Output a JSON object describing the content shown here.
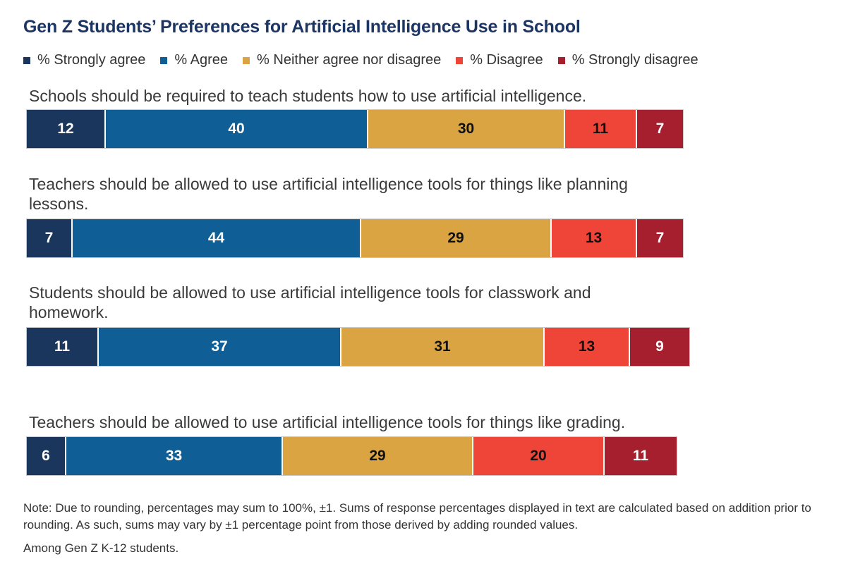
{
  "chart_data": {
    "type": "stacked-bar",
    "title": "Gen Z Students’ Preferences for Artificial Intelligence Use in School",
    "legend_position": "top-left",
    "series": [
      {
        "name": "% Strongly agree",
        "color": "#1b365d"
      },
      {
        "name": "% Agree",
        "color": "#0f5f96"
      },
      {
        "name": "% Neither agree nor disagree",
        "color": "#d9a441"
      },
      {
        "name": "% Disagree",
        "color": "#ef4438"
      },
      {
        "name": "% Strongly disagree",
        "color": "#a51f2e"
      }
    ],
    "items": [
      {
        "question": "Schools should be required to teach students how to use artificial intelligence.",
        "values": [
          12,
          40,
          30,
          11,
          7
        ]
      },
      {
        "question": "Teachers should be allowed to use artificial intelligence tools for things like planning lessons.",
        "values": [
          7,
          44,
          29,
          13,
          7
        ]
      },
      {
        "question": "Students should be allowed to use artificial intelligence tools for classwork and homework.",
        "values": [
          11,
          37,
          31,
          13,
          9
        ]
      },
      {
        "question": "Teachers should be allowed to use artificial intelligence tools for things like grading.",
        "values": [
          6,
          33,
          29,
          20,
          11
        ]
      }
    ]
  },
  "footer": {
    "note": "Note: Due to rounding, percentages may sum to 100%, ±1. Sums of response percentages displayed in text are calculated based on addition prior to rounding. As such, sums may vary by ±1 percentage point from those derived by adding rounded values.",
    "base": "Among Gen Z K-12 students."
  }
}
